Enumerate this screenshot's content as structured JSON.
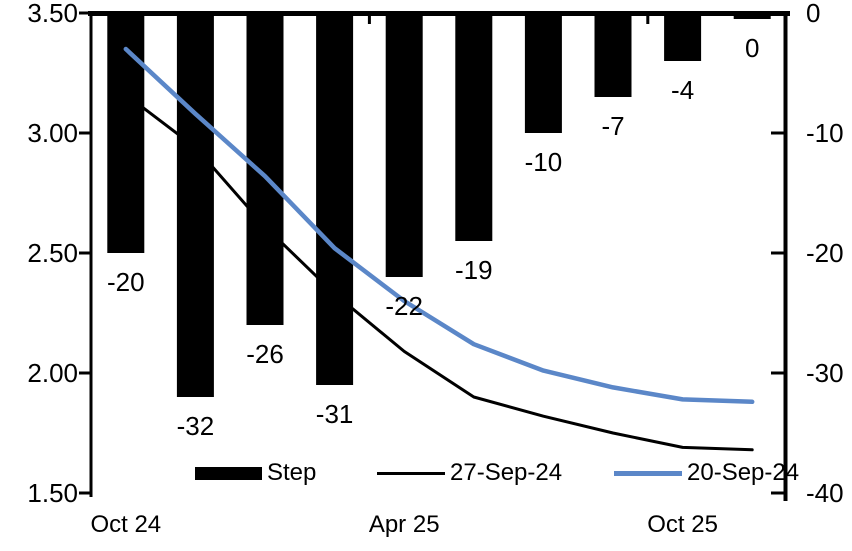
{
  "colors": {
    "bar": "#000000",
    "line_27sep": "#000000",
    "line_20sep": "#5b87c8",
    "axis": "#000000",
    "text": "#000000",
    "background": "#ffffff"
  },
  "chart_data": {
    "type": "combo_bar_line",
    "n_categories": 10,
    "x_axis": {
      "tick_labels": [
        "Oct 24",
        "Apr 25",
        "Oct 25"
      ],
      "tick_label_category_index": [
        0,
        4,
        8
      ],
      "boundary_tick_category_index": [
        4,
        8
      ]
    },
    "left_axis": {
      "min": 1.5,
      "max": 3.5,
      "tick_labels": [
        "3.50",
        "3.00",
        "2.50",
        "2.00",
        "1.50"
      ],
      "tick_values": [
        3.5,
        3.0,
        2.5,
        2.0,
        1.5
      ]
    },
    "right_axis": {
      "min": -40,
      "max": 0,
      "tick_labels": [
        "0",
        "-10",
        "-20",
        "-30",
        "-40"
      ],
      "tick_values": [
        0,
        -10,
        -20,
        -30,
        -40
      ]
    },
    "bar_series": {
      "name": "Step",
      "axis": "right",
      "color_key": "bar",
      "values": [
        -20,
        -32,
        -26,
        -31,
        -22,
        -19,
        -10,
        -7,
        -4,
        0
      ],
      "data_labels": [
        "-20",
        "-32",
        "-26",
        "-31",
        "-22",
        "-19",
        "-10",
        "-7",
        "-4",
        "0"
      ]
    },
    "line_series": [
      {
        "name": "27-Sep-24",
        "axis": "left",
        "color_key": "line_27sep",
        "stroke_width": 3,
        "values": [
          3.16,
          2.94,
          2.61,
          2.33,
          2.09,
          1.9,
          1.82,
          1.75,
          1.69,
          1.68
        ]
      },
      {
        "name": "20-Sep-24",
        "axis": "left",
        "color_key": "line_20sep",
        "stroke_width": 4.5,
        "values": [
          3.35,
          3.08,
          2.82,
          2.52,
          2.3,
          2.12,
          2.01,
          1.94,
          1.89,
          1.88
        ]
      }
    ],
    "legend": [
      {
        "label": "Step",
        "swatch": "bar",
        "color_key": "bar"
      },
      {
        "label": "27-Sep-24",
        "swatch": "line",
        "color_key": "line_27sep"
      },
      {
        "label": "20-Sep-24",
        "swatch": "line_thick",
        "color_key": "line_20sep"
      }
    ]
  }
}
